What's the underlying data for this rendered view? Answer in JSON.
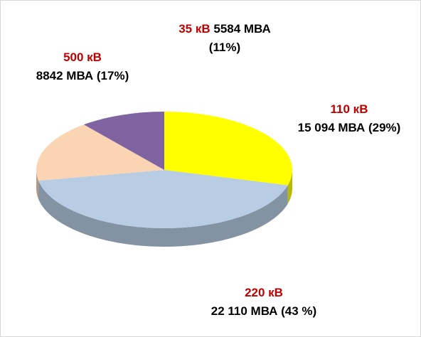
{
  "chart_data": {
    "type": "pie3d",
    "categories": [
      "110 кВ",
      "220 кВ",
      "500 кВ",
      "35 кВ"
    ],
    "values": [
      15094,
      22110,
      8842,
      5584
    ],
    "value_labels": [
      "15 094 МВА (29%)",
      "22 110 МВА (43 %)",
      "8842 МВА (17%)",
      "5584 МВА (11%)"
    ],
    "colors": [
      "#ffff00",
      "#b8cce4",
      "#fbd4b4",
      "#8064a2"
    ]
  }
}
